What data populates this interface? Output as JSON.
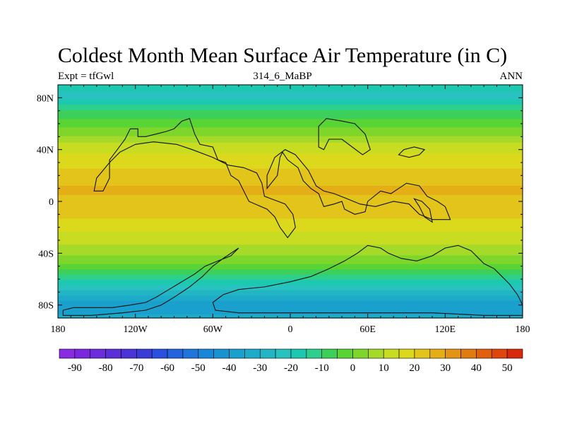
{
  "chart_data": {
    "type": "heatmap",
    "title": "Coldest Month Mean Surface Air Temperature (in C)",
    "left_label": "Expt = tfGwl",
    "center_label": "314_6_MaBP",
    "right_label": "ANN",
    "x_tick_labels": [
      "180",
      "120W",
      "60W",
      "0",
      "60E",
      "120E",
      "180"
    ],
    "y_tick_labels": [
      "80N",
      "40N",
      "0",
      "40S",
      "80S"
    ],
    "x_tick_values": [
      -180,
      -120,
      -60,
      0,
      60,
      120,
      180
    ],
    "y_tick_values": [
      80,
      40,
      0,
      -40,
      -80
    ],
    "xlim": [
      -180,
      180
    ],
    "ylim": [
      -90,
      90
    ],
    "colorbar_levels": [
      -95,
      -90,
      -85,
      -80,
      -75,
      -70,
      -65,
      -60,
      -55,
      -50,
      -45,
      -40,
      -35,
      -30,
      -25,
      -20,
      -15,
      -10,
      -5,
      0,
      5,
      10,
      15,
      20,
      25,
      30,
      35,
      40,
      45,
      50,
      55
    ],
    "colorbar_labels": [
      "-90",
      "-80",
      "-70",
      "-60",
      "-50",
      "-40",
      "-30",
      "-20",
      "-10",
      "0",
      "10",
      "20",
      "30",
      "40",
      "50"
    ],
    "colorbar_label_values": [
      -90,
      -80,
      -70,
      -60,
      -50,
      -40,
      -30,
      -20,
      -10,
      0,
      10,
      20,
      30,
      40,
      50
    ],
    "colorbar_colors": [
      "#8a2be2",
      "#7a28e0",
      "#6c2bdc",
      "#5a2fd8",
      "#4b35d6",
      "#3a3cd6",
      "#2b50e0",
      "#2462de",
      "#1f75dc",
      "#1a86d8",
      "#1793d2",
      "#1aa0cc",
      "#1cabc8",
      "#22b6c4",
      "#28c2c0",
      "#1cc8b0",
      "#2cd08c",
      "#3ccf5a",
      "#58d434",
      "#7fd62a",
      "#a6da28",
      "#c8dc22",
      "#dcd81c",
      "#e2c41a",
      "#e4ae16",
      "#e49414",
      "#e27a12",
      "#e0600e",
      "#de460c",
      "#d82a0a"
    ],
    "continent_outlines": {
      "north_america_ring": [
        [
          -145,
          8
        ],
        [
          -140,
          18
        ],
        [
          -140,
          32
        ],
        [
          -134,
          40
        ],
        [
          -128,
          48
        ],
        [
          -124,
          56
        ],
        [
          -118,
          56
        ],
        [
          -118,
          50
        ],
        [
          -112,
          50
        ],
        [
          -104,
          52
        ],
        [
          -96,
          54
        ],
        [
          -90,
          56
        ],
        [
          -84,
          62
        ],
        [
          -78,
          64
        ],
        [
          -74,
          52
        ],
        [
          -70,
          44
        ],
        [
          -60,
          42
        ],
        [
          -56,
          32
        ],
        [
          -50,
          30
        ],
        [
          -46,
          20
        ],
        [
          -40,
          16
        ],
        [
          -32,
          0
        ],
        [
          -18,
          -6
        ],
        [
          -12,
          -12
        ],
        [
          -8,
          -20
        ],
        [
          -2,
          -28
        ],
        [
          4,
          -20
        ],
        [
          2,
          -10
        ],
        [
          -4,
          -2
        ],
        [
          -20,
          4
        ],
        [
          -22,
          14
        ],
        [
          -26,
          22
        ],
        [
          -36,
          26
        ],
        [
          -48,
          28
        ],
        [
          -60,
          34
        ],
        [
          -76,
          40
        ],
        [
          -88,
          44
        ],
        [
          -106,
          46
        ],
        [
          -120,
          44
        ],
        [
          -132,
          38
        ],
        [
          -140,
          30
        ],
        [
          -150,
          18
        ],
        [
          -152,
          8
        ]
      ],
      "south_america_ring": [
        [
          -40,
          -36
        ],
        [
          -46,
          -42
        ],
        [
          -56,
          -46
        ],
        [
          -66,
          -50
        ],
        [
          -74,
          -56
        ],
        [
          -84,
          -62
        ],
        [
          -94,
          -68
        ],
        [
          -104,
          -74
        ],
        [
          -112,
          -78
        ],
        [
          -124,
          -80
        ],
        [
          -138,
          -82
        ],
        [
          -154,
          -82
        ],
        [
          -168,
          -82
        ],
        [
          -176,
          -84
        ],
        [
          -176,
          -88
        ],
        [
          -154,
          -88
        ],
        [
          -130,
          -86
        ],
        [
          -112,
          -84
        ],
        [
          -100,
          -80
        ],
        [
          -90,
          -74
        ],
        [
          -78,
          -66
        ],
        [
          -68,
          -58
        ],
        [
          -60,
          -50
        ],
        [
          -52,
          -44
        ]
      ],
      "africa_ring": [
        [
          -40,
          -68
        ],
        [
          -20,
          -66
        ],
        [
          0,
          -62
        ],
        [
          16,
          -58
        ],
        [
          30,
          -52
        ],
        [
          42,
          -46
        ],
        [
          52,
          -40
        ],
        [
          60,
          -34
        ],
        [
          70,
          -36
        ],
        [
          76,
          -40
        ],
        [
          86,
          -44
        ],
        [
          98,
          -46
        ],
        [
          110,
          -42
        ],
        [
          120,
          -36
        ],
        [
          130,
          -34
        ],
        [
          140,
          -38
        ],
        [
          146,
          -44
        ],
        [
          150,
          -48
        ],
        [
          158,
          -52
        ],
        [
          164,
          -58
        ],
        [
          170,
          -64
        ],
        [
          176,
          -72
        ],
        [
          180,
          -80
        ],
        [
          180,
          -88
        ],
        [
          150,
          -88
        ],
        [
          110,
          -86
        ],
        [
          60,
          -86
        ],
        [
          10,
          -86
        ],
        [
          -40,
          -86
        ],
        [
          -58,
          -84
        ],
        [
          -60,
          -78
        ],
        [
          -52,
          -72
        ]
      ],
      "europe_ring": [
        [
          -18,
          10
        ],
        [
          -10,
          20
        ],
        [
          -8,
          34
        ],
        [
          -6,
          38
        ],
        [
          -2,
          32
        ],
        [
          6,
          26
        ],
        [
          10,
          16
        ],
        [
          16,
          10
        ],
        [
          22,
          6
        ],
        [
          26,
          -4
        ],
        [
          34,
          -2
        ],
        [
          40,
          0
        ],
        [
          42,
          -6
        ],
        [
          50,
          -10
        ],
        [
          58,
          -8
        ],
        [
          60,
          0
        ],
        [
          70,
          8
        ],
        [
          78,
          6
        ],
        [
          84,
          10
        ],
        [
          90,
          14
        ],
        [
          100,
          12
        ],
        [
          106,
          4
        ],
        [
          114,
          0
        ],
        [
          120,
          -4
        ],
        [
          124,
          -14
        ],
        [
          110,
          -14
        ],
        [
          100,
          -10
        ],
        [
          92,
          -2
        ],
        [
          80,
          0
        ],
        [
          66,
          -4
        ],
        [
          54,
          -2
        ],
        [
          44,
          2
        ],
        [
          34,
          6
        ],
        [
          26,
          8
        ],
        [
          20,
          12
        ],
        [
          14,
          24
        ],
        [
          4,
          36
        ],
        [
          -4,
          40
        ],
        [
          -12,
          34
        ],
        [
          -18,
          20
        ]
      ],
      "arctic_ring": [
        [
          22,
          42
        ],
        [
          22,
          58
        ],
        [
          28,
          64
        ],
        [
          40,
          62
        ],
        [
          50,
          60
        ],
        [
          58,
          52
        ],
        [
          62,
          40
        ],
        [
          56,
          36
        ],
        [
          48,
          42
        ],
        [
          40,
          48
        ],
        [
          30,
          48
        ],
        [
          26,
          40
        ]
      ],
      "greenland_ring": [
        [
          84,
          36
        ],
        [
          88,
          40
        ],
        [
          96,
          42
        ],
        [
          104,
          40
        ],
        [
          100,
          36
        ],
        [
          92,
          34
        ]
      ],
      "island_ring": [
        [
          96,
          2
        ],
        [
          100,
          -4
        ],
        [
          104,
          -12
        ],
        [
          110,
          -16
        ],
        [
          108,
          -6
        ],
        [
          102,
          0
        ]
      ]
    },
    "field_bands": [
      {
        "lat": 90,
        "value": -18
      },
      {
        "lat": 80,
        "value": -22
      },
      {
        "lat": 72,
        "value": -12
      },
      {
        "lat": 62,
        "value": -4
      },
      {
        "lat": 52,
        "value": 4
      },
      {
        "lat": 42,
        "value": 12
      },
      {
        "lat": 32,
        "value": 18
      },
      {
        "lat": 22,
        "value": 21
      },
      {
        "lat": 10,
        "value": 26
      },
      {
        "lat": 0,
        "value": 24
      },
      {
        "lat": -10,
        "value": 21
      },
      {
        "lat": -20,
        "value": 17
      },
      {
        "lat": -30,
        "value": 12
      },
      {
        "lat": -40,
        "value": 6
      },
      {
        "lat": -50,
        "value": -2
      },
      {
        "lat": -58,
        "value": -12
      },
      {
        "lat": -66,
        "value": -22
      },
      {
        "lat": -74,
        "value": -32
      },
      {
        "lat": -82,
        "value": -40
      },
      {
        "lat": -90,
        "value": -32
      }
    ],
    "grid": false,
    "legend_placement": "bottom"
  }
}
